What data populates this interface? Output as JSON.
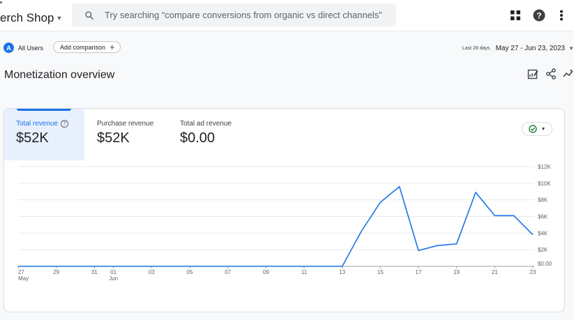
{
  "header": {
    "app_title": "erch Shop",
    "search_placeholder": "Try searching “compare conversions from organic vs direct channels”",
    "icons": [
      "apps-grid-icon",
      "help-icon",
      "more-vert-icon"
    ]
  },
  "filters": {
    "segment_badge": "A",
    "segment_label": "All Users",
    "add_comparison_label": "Add comparison",
    "date_range_label": "Last 28 days",
    "date_range_value": "May 27 - Jun 23, 2023"
  },
  "page": {
    "title": "Monetization overview",
    "title_icons": [
      "edit-report-icon",
      "share-icon",
      "insights-icon"
    ]
  },
  "card": {
    "metrics": [
      {
        "label": "Total revenue",
        "value": "$52K",
        "selected": true
      },
      {
        "label": "Purchase revenue",
        "value": "$52K",
        "selected": false
      },
      {
        "label": "Total ad revenue",
        "value": "$0.00",
        "selected": false
      }
    ],
    "status_icon": "check-circle-icon"
  },
  "colors": {
    "accent": "#1a73e8",
    "status_green": "#188038",
    "selected_bg": "#e8f0fe"
  },
  "chart_data": {
    "type": "line",
    "x": [
      "27",
      "28",
      "29",
      "30",
      "31",
      "01",
      "02",
      "03",
      "04",
      "05",
      "06",
      "07",
      "08",
      "09",
      "10",
      "11",
      "12",
      "13",
      "14",
      "15",
      "16",
      "17",
      "18",
      "19",
      "20",
      "21",
      "22",
      "23"
    ],
    "x_tick_labels": [
      "27",
      "29",
      "31",
      "01",
      "03",
      "05",
      "07",
      "09",
      "11",
      "13",
      "15",
      "17",
      "19",
      "21",
      "23"
    ],
    "x_tick_sublabels": {
      "27": "May",
      "01": "Jun"
    },
    "series": [
      {
        "values": [
          0,
          0,
          0,
          0,
          0,
          0,
          0,
          0,
          0,
          0,
          0,
          0,
          0,
          0,
          0,
          0,
          0,
          0,
          4200,
          7700,
          9600,
          1900,
          2500,
          2700,
          8900,
          6100,
          6100,
          3800
        ]
      }
    ],
    "y_tick_labels": [
      "$0.00",
      "$2K",
      "$4K",
      "$6K",
      "$8K",
      "$10K",
      "$12K"
    ],
    "y_ticks": [
      0,
      2000,
      4000,
      6000,
      8000,
      10000,
      12000
    ],
    "ylim": [
      0,
      12000
    ],
    "grid": true,
    "y_axis_position": "right"
  }
}
